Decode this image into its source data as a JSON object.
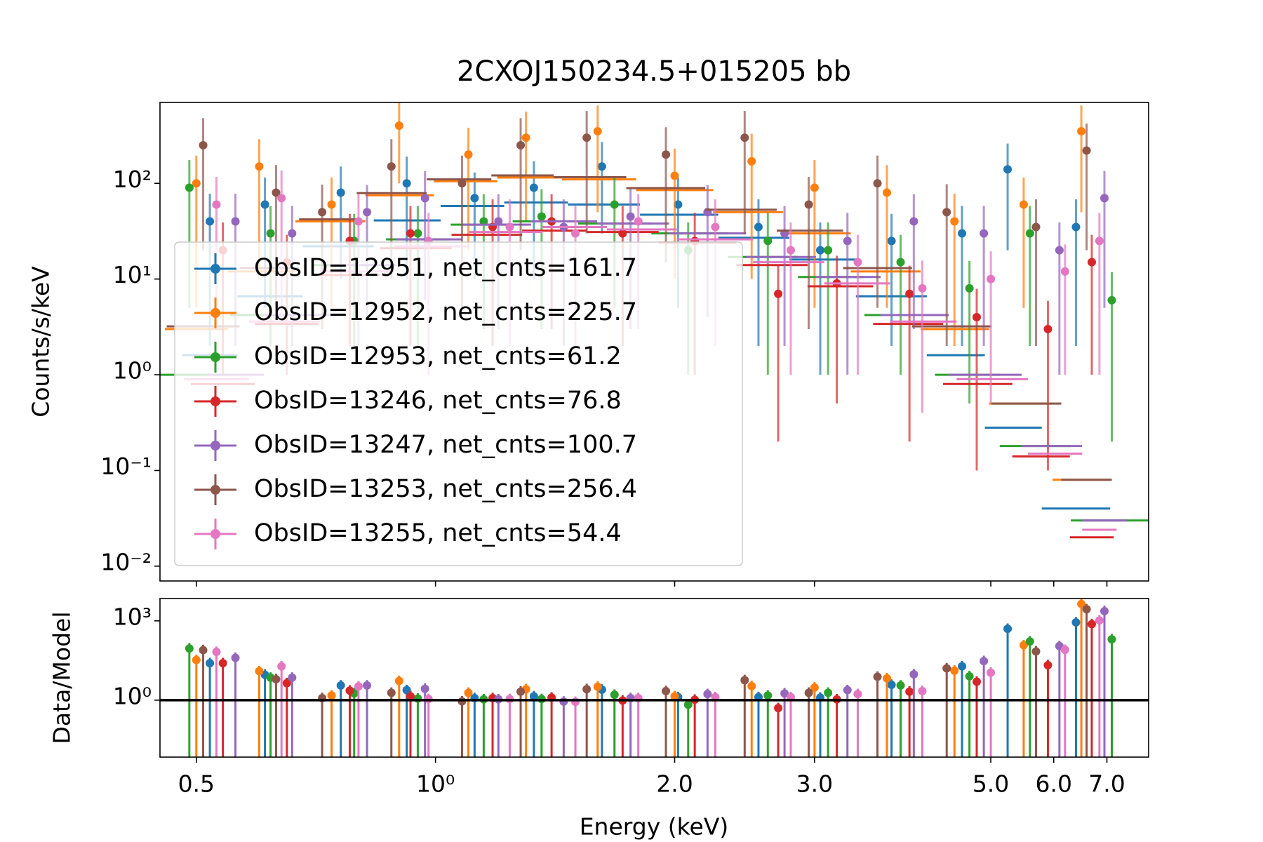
{
  "chart_data": [
    {
      "type": "scatter",
      "title": "2CXOJ150234.5+015205 bb",
      "ylabel": "Counts/s/keV",
      "xscale": "log",
      "yscale": "log",
      "xlim": [
        0.45,
        7.9
      ],
      "ylim": [
        0.007,
        700
      ],
      "yticks": [
        {
          "value": 0.01,
          "label": "10⁻²"
        },
        {
          "value": 0.1,
          "label": "10⁻¹"
        },
        {
          "value": 1,
          "label": "10⁰"
        },
        {
          "value": 10,
          "label": "10¹"
        },
        {
          "value": 100,
          "label": "10²"
        }
      ],
      "legend": "lower left",
      "series": [
        {
          "name": "ObsID=12951, net_cnts=161.7",
          "color": "#1f77b4",
          "x": [
            0.52,
            0.61,
            0.76,
            0.92,
            1.12,
            1.33,
            1.62,
            2.02,
            2.55,
            3.05,
            3.75,
            4.6,
            5.25,
            6.4
          ],
          "values": [
            40,
            60,
            80,
            100,
            70,
            90,
            150,
            60,
            35,
            20,
            25,
            30,
            140,
            35
          ],
          "yerr": [
            38,
            55,
            70,
            90,
            60,
            80,
            120,
            55,
            33,
            19,
            23,
            28,
            120,
            33
          ],
          "model": [
            1.6,
            6.6,
            22,
            41,
            58,
            63,
            60,
            47,
            27,
            16,
            6.6,
            1.6,
            0.28,
            0.04
          ]
        },
        {
          "name": "ObsID=12952, net_cnts=225.7",
          "color": "#ff7f0e",
          "x": [
            0.5,
            0.6,
            0.74,
            0.9,
            1.1,
            1.3,
            1.6,
            2.0,
            2.5,
            3.0,
            3.7,
            4.5,
            5.5,
            6.5
          ],
          "values": [
            100,
            150,
            60,
            400,
            200,
            300,
            350,
            120,
            170,
            90,
            80,
            40,
            60,
            350
          ],
          "yerr": [
            95,
            140,
            55,
            300,
            180,
            260,
            300,
            110,
            160,
            85,
            75,
            38,
            55,
            300
          ],
          "model": [
            3,
            12,
            40,
            75,
            105,
            115,
            110,
            85,
            50,
            30,
            12,
            3,
            0.5,
            0.08
          ]
        },
        {
          "name": "ObsID=12953, net_cnts=61.2",
          "color": "#2ca02c",
          "x": [
            0.49,
            0.62,
            0.79,
            0.95,
            1.15,
            1.36,
            1.68,
            2.08,
            2.62,
            3.12,
            3.85,
            4.7,
            5.6,
            7.1
          ],
          "values": [
            90,
            30,
            25,
            30,
            40,
            45,
            60,
            20,
            25,
            20,
            15,
            8,
            30,
            6
          ],
          "yerr": [
            85,
            28,
            23,
            28,
            37,
            42,
            55,
            19,
            24,
            19,
            14,
            7.5,
            28,
            5.8
          ],
          "model": [
            1,
            4.2,
            14,
            26,
            37,
            40,
            38,
            30,
            17,
            10.5,
            4.2,
            1,
            0.18,
            0.03
          ]
        },
        {
          "name": "ObsID=13246, net_cnts=76.8",
          "color": "#d62728",
          "x": [
            0.54,
            0.65,
            0.78,
            0.93,
            1.18,
            1.4,
            1.72,
            2.12,
            2.7,
            3.2,
            3.95,
            4.8,
            5.9,
            6.7
          ],
          "values": [
            20,
            15,
            25,
            30,
            35,
            40,
            30,
            25,
            7,
            9,
            7,
            4,
            3,
            15
          ],
          "yerr": [
            19,
            14,
            23,
            28,
            33,
            37,
            28,
            24,
            6.8,
            8.5,
            6.8,
            3.9,
            2.9,
            14
          ],
          "model": [
            0.8,
            3.4,
            11,
            21,
            29,
            32,
            31,
            24,
            14,
            8.4,
            3.4,
            0.8,
            0.14,
            0.02
          ]
        },
        {
          "name": "ObsID=13247, net_cnts=100.7",
          "color": "#9467bd",
          "x": [
            0.56,
            0.66,
            0.82,
            0.97,
            1.2,
            1.45,
            1.76,
            2.2,
            2.75,
            3.3,
            4.0,
            4.9,
            6.1,
            6.95
          ],
          "values": [
            40,
            30,
            50,
            70,
            40,
            35,
            45,
            50,
            30,
            25,
            40,
            30,
            20,
            70
          ],
          "yerr": [
            38,
            28,
            46,
            64,
            37,
            33,
            42,
            46,
            28,
            24,
            37,
            28,
            19,
            65
          ],
          "model": [
            1,
            4.2,
            14,
            26,
            37,
            40,
            38,
            30,
            17,
            10.5,
            4.2,
            1,
            0.18,
            0.03
          ]
        },
        {
          "name": "ObsID=13253, net_cnts=256.4",
          "color": "#8c564b",
          "x": [
            0.51,
            0.63,
            0.72,
            0.88,
            1.08,
            1.28,
            1.55,
            1.95,
            2.45,
            2.95,
            3.6,
            4.4,
            5.7,
            6.6
          ],
          "values": [
            250,
            80,
            50,
            150,
            100,
            250,
            300,
            200,
            300,
            60,
            100,
            50,
            35,
            220
          ],
          "yerr": [
            230,
            75,
            47,
            140,
            95,
            230,
            270,
            185,
            270,
            57,
            95,
            48,
            33,
            200
          ],
          "model": [
            3.2,
            13,
            42,
            79,
            110,
            121,
            116,
            89,
            53,
            32,
            13,
            3.2,
            0.5,
            0.08
          ]
        },
        {
          "name": "ObsID=13255, net_cnts=54.4",
          "color": "#e377c2",
          "x": [
            0.53,
            0.64,
            0.8,
            0.98,
            1.24,
            1.5,
            1.8,
            2.25,
            2.8,
            3.4,
            4.1,
            5.0,
            6.2,
            6.85
          ],
          "values": [
            60,
            70,
            40,
            25,
            35,
            30,
            40,
            35,
            20,
            15,
            8,
            10,
            12,
            25
          ],
          "yerr": [
            57,
            66,
            38,
            24,
            33,
            28,
            37,
            33,
            19,
            14,
            7.6,
            9.5,
            11,
            24
          ],
          "model": [
            0.9,
            3.6,
            12,
            22,
            31,
            35,
            33,
            26,
            15,
            9,
            3.6,
            0.9,
            0.15,
            0.024
          ]
        }
      ]
    },
    {
      "type": "scatter",
      "ylabel": "Data/Model",
      "xlabel": "Energy (keV)",
      "xscale": "log",
      "yscale": "log",
      "xlim": [
        0.45,
        7.9
      ],
      "ylim": [
        0.007,
        7000
      ],
      "xticks": [
        0.5,
        {
          "value": 1,
          "label": "10⁰"
        },
        {
          "value": 2,
          "label": "2.0"
        },
        {
          "value": 3,
          "label": "3.0"
        },
        {
          "value": 5,
          "label": "5.0"
        },
        {
          "value": 6,
          "label": "6.0"
        },
        {
          "value": 7,
          "label": "7.0"
        }
      ],
      "yticks": [
        {
          "value": 1,
          "label": "10⁰"
        },
        {
          "value": 1000,
          "label": "10³"
        }
      ],
      "refline": 1,
      "series": [
        {
          "values": [
            25,
            9.1,
            3.6,
            2.4,
            1.2,
            1.4,
            2.5,
            1.3,
            1.3,
            1.25,
            3.8,
            19,
            500,
            875
          ]
        },
        {
          "values": [
            33,
            12.5,
            1.5,
            5.3,
            1.9,
            2.6,
            3.2,
            1.4,
            3.4,
            3,
            6.7,
            13,
            120,
            4375
          ]
        },
        {
          "values": [
            90,
            7.1,
            1.8,
            1.15,
            1.08,
            1.1,
            1.6,
            0.67,
            1.5,
            1.9,
            3.6,
            8,
            167,
            200
          ]
        },
        {
          "values": [
            25,
            4.4,
            2.3,
            1.4,
            1.2,
            1.25,
            0.97,
            1.04,
            0.5,
            1.07,
            2.1,
            5,
            21,
            750
          ]
        },
        {
          "values": [
            40,
            7.1,
            3.6,
            2.7,
            1.08,
            0.88,
            1.2,
            1.7,
            1.8,
            2.4,
            9.5,
            30,
            111,
            2333
          ]
        },
        {
          "values": [
            78,
            6.2,
            1.2,
            1.9,
            0.9,
            2.1,
            2.6,
            2.2,
            5.7,
            1.9,
            7.7,
            16,
            70,
            2750
          ]
        },
        {
          "values": [
            67,
            19,
            3.3,
            1.1,
            1.1,
            0.86,
            1.2,
            1.3,
            1.3,
            1.7,
            2.2,
            11,
            80,
            1040
          ]
        }
      ]
    }
  ]
}
